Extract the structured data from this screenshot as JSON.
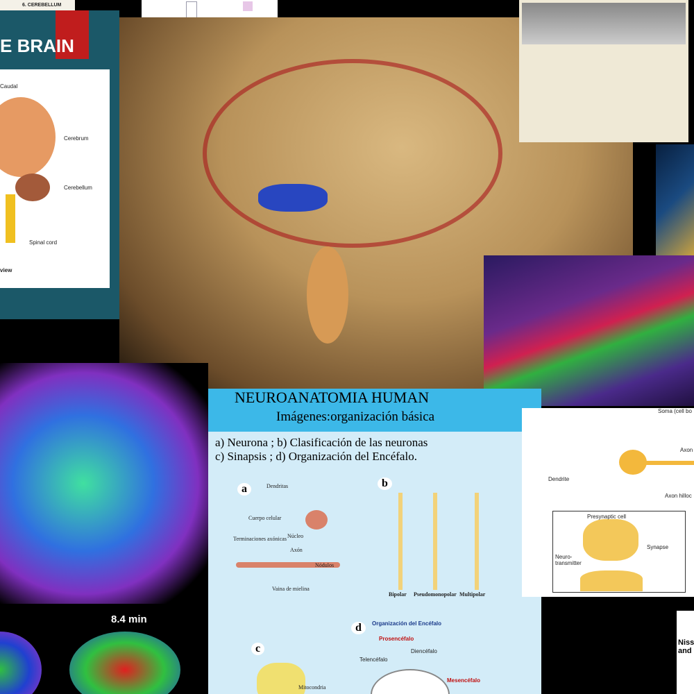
{
  "tiles": {
    "corner_doc": {
      "heading": "6. CEREBELLUM"
    },
    "brain_book": {
      "title": "E BRAIN",
      "labels": [
        "Caudal",
        "Cerebrum",
        "Cerebellum",
        "Spinal cord",
        "view"
      ]
    },
    "tractography": {
      "time": "8.4 min"
    },
    "slide": {
      "title": "NEUROANATOMIA HUMAN",
      "subtitle": "Imágenes:organización básica",
      "lines": [
        "a) Neurona ; b) Clasificación de las neuronas",
        "c) Sinapsis ; d) Organización del Encéfalo."
      ],
      "panels": [
        {
          "letter": "a",
          "labels": [
            "Dendritas",
            "Cuerpo celular",
            "Núcleo",
            "Terminaciones axónicas",
            "Axón",
            "Nódulos",
            "Vaina de mielina"
          ]
        },
        {
          "letter": "b",
          "labels": [
            "Bipolar",
            "Pseudomonopolar",
            "Multipolar"
          ]
        },
        {
          "letter": "c",
          "labels": [
            "Mitocondria"
          ]
        },
        {
          "letter": "d",
          "labels": [
            "Organización del Encéfalo",
            "Prosencéfalo",
            "Telencéfalo",
            "Diencéfalo",
            "Mesencéfalo"
          ]
        }
      ]
    },
    "neuron_diagram": {
      "labels": [
        "Soma (cell bo",
        "Dendrite",
        "Axon",
        "Axon hilloc",
        "Presynaptic cell",
        "Synapse",
        "Neuro-transmitter"
      ]
    },
    "nissl": {
      "text": "Niss and"
    }
  }
}
